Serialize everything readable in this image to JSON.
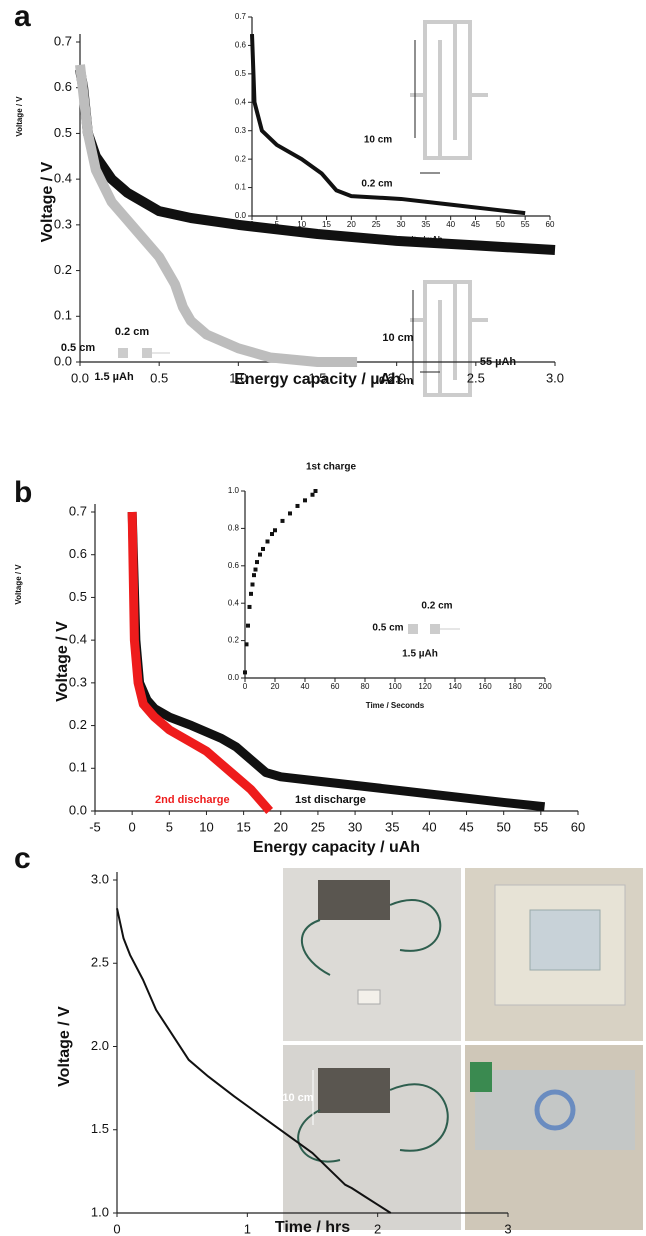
{
  "chart_data": [
    {
      "type": "line",
      "panel_label": "a",
      "x_label": "Energy capacity / µAh",
      "y_label": "Voltage / V",
      "xlim": [
        0,
        3
      ],
      "xticks": [
        {
          "value": 0,
          "label": "0.0"
        },
        0.5,
        {
          "value": 1,
          "label": "1.0"
        },
        1.5,
        {
          "value": 2,
          "label": "2.0"
        },
        2.5,
        {
          "value": 3,
          "label": "3.0"
        }
      ],
      "ylim": [
        0,
        0.7
      ],
      "yticks": [
        {
          "value": 0,
          "label": "0.0"
        },
        0.1,
        0.2,
        0.3,
        0.4,
        0.5,
        0.6,
        0.7
      ],
      "series": [
        {
          "color": "#111111",
          "x": [
            0,
            0.02,
            0.05,
            0.1,
            0.2,
            0.3,
            0.4,
            0.5,
            0.7,
            1.0,
            1.5,
            2.0,
            2.5,
            3.0
          ],
          "values": [
            0.64,
            0.6,
            0.5,
            0.45,
            0.4,
            0.37,
            0.35,
            0.33,
            0.315,
            0.3,
            0.28,
            0.265,
            0.255,
            0.245
          ]
        },
        {
          "color": "#bdbdbd",
          "x": [
            0,
            0.05,
            0.1,
            0.2,
            0.3,
            0.4,
            0.5,
            0.6,
            0.65,
            0.7,
            0.8,
            1.0,
            1.2,
            1.5,
            1.75
          ],
          "values": [
            0.65,
            0.5,
            0.42,
            0.35,
            0.31,
            0.27,
            0.23,
            0.17,
            0.12,
            0.09,
            0.06,
            0.03,
            0.01,
            0.0,
            0.0
          ]
        }
      ],
      "annotations": [
        "0.2 cm",
        "0.5 cm",
        "1.5 µAh",
        "10 cm",
        "0.2 cm",
        "55 µAh"
      ]
    },
    {
      "type": "line",
      "x_label": "Energy capacity / µAh",
      "y_label": "Voltage / V",
      "xlim": [
        0,
        60
      ],
      "xticks": [
        0,
        5,
        10,
        15,
        20,
        25,
        30,
        35,
        40,
        45,
        50,
        55,
        60
      ],
      "ylim": [
        0,
        0.7
      ],
      "yticks": [
        {
          "value": 0,
          "label": "0.0"
        },
        0.1,
        0.2,
        0.3,
        0.4,
        0.5,
        0.6,
        0.7
      ],
      "series": [
        {
          "color": "#111111",
          "x": [
            0,
            0.5,
            2,
            5,
            10,
            14,
            17,
            20,
            30,
            40,
            50,
            55
          ],
          "values": [
            0.64,
            0.4,
            0.3,
            0.25,
            0.2,
            0.15,
            0.09,
            0.07,
            0.06,
            0.04,
            0.02,
            0.01
          ]
        }
      ],
      "annotations": [
        "10 cm",
        "0.2 cm"
      ]
    },
    {
      "type": "line",
      "panel_label": "b",
      "x_label": "Energy capacity / uAh",
      "y_label": "Voltage / V",
      "xlim": [
        -5,
        60
      ],
      "xticks": [
        -5,
        0,
        5,
        10,
        15,
        20,
        25,
        30,
        35,
        40,
        45,
        50,
        55,
        60
      ],
      "ylim": [
        0,
        0.7
      ],
      "yticks": [
        {
          "value": 0,
          "label": "0.0"
        },
        0.1,
        0.2,
        0.3,
        0.4,
        0.5,
        0.6,
        0.7
      ],
      "series": [
        {
          "color": "#111111",
          "x": [
            0,
            0.5,
            1,
            2,
            3,
            5,
            8,
            10,
            12,
            14,
            16,
            18,
            20,
            25,
            30,
            40,
            50,
            55.5
          ],
          "values": [
            0.7,
            0.4,
            0.3,
            0.26,
            0.24,
            0.22,
            0.2,
            0.185,
            0.17,
            0.15,
            0.12,
            0.09,
            0.08,
            0.07,
            0.06,
            0.04,
            0.02,
            0.01
          ]
        },
        {
          "color": "#ee1c1c",
          "x": [
            0,
            0.3,
            0.8,
            1.5,
            3,
            5,
            8,
            10,
            12,
            14,
            16,
            17,
            18,
            18.5
          ],
          "values": [
            0.7,
            0.4,
            0.3,
            0.25,
            0.22,
            0.19,
            0.16,
            0.14,
            0.11,
            0.08,
            0.05,
            0.03,
            0.01,
            0
          ]
        }
      ],
      "annotations": [
        "2nd discharge",
        "1st discharge"
      ]
    },
    {
      "type": "scatter",
      "x_label": "Time / Seconds",
      "y_label": "Voltage / V",
      "xlim": [
        0,
        200
      ],
      "xticks": [
        0,
        20,
        40,
        60,
        80,
        100,
        120,
        140,
        160,
        180,
        200
      ],
      "ylim": [
        0,
        1
      ],
      "yticks": [
        {
          "value": 0,
          "label": "0.0"
        },
        0.2,
        0.4,
        0.6,
        0.8,
        {
          "value": 1,
          "label": "1.0"
        }
      ],
      "series": [
        {
          "color": "#111111",
          "x": [
            0,
            1,
            2,
            3,
            4,
            5,
            6,
            7,
            8,
            10,
            12,
            15,
            18,
            20,
            25,
            30,
            35,
            40,
            45,
            47
          ],
          "values": [
            0.03,
            0.18,
            0.28,
            0.38,
            0.45,
            0.5,
            0.55,
            0.58,
            0.62,
            0.66,
            0.69,
            0.73,
            0.77,
            0.79,
            0.84,
            0.88,
            0.92,
            0.95,
            0.98,
            1.0
          ]
        }
      ],
      "annotations": [
        "1st charge",
        "0.2 cm",
        "0.5 cm",
        "1.5 µAh"
      ]
    },
    {
      "type": "line",
      "panel_label": "c",
      "x_label": "Time / hrs",
      "y_label": "Voltage / V",
      "xlim": [
        0,
        3
      ],
      "xticks": [
        0,
        1,
        2,
        3
      ],
      "ylim": [
        1,
        3
      ],
      "yticks": [
        {
          "value": 1,
          "label": "1.0"
        },
        1.5,
        {
          "value": 2,
          "label": "2.0"
        },
        2.5,
        {
          "value": 3,
          "label": "3.0"
        }
      ],
      "series": [
        {
          "color": "#111111",
          "x": [
            0,
            0.05,
            0.1,
            0.2,
            0.3,
            0.4,
            0.5,
            0.55,
            0.7,
            0.9,
            1.2,
            1.5,
            1.75,
            1.8,
            1.9,
            2.0,
            2.1
          ],
          "values": [
            2.83,
            2.65,
            2.55,
            2.4,
            2.22,
            2.1,
            1.98,
            1.92,
            1.82,
            1.7,
            1.53,
            1.36,
            1.17,
            1.15,
            1.1,
            1.05,
            1.0
          ]
        }
      ],
      "annotations": [
        "10 cm"
      ]
    }
  ]
}
